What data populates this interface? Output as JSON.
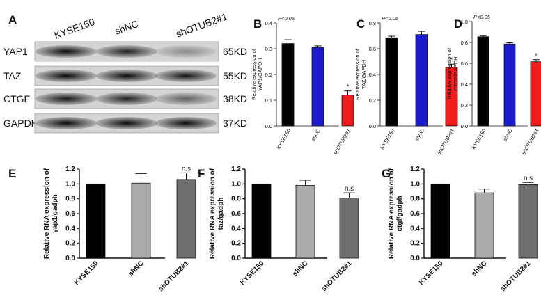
{
  "western_blot": {
    "panel": "A",
    "lanes": [
      "KYSE150",
      "shNC",
      "shOTUB2#1"
    ],
    "proteins": [
      {
        "name": "YAP1",
        "size": "65KD",
        "intensity": [
          0.95,
          0.85,
          0.35
        ]
      },
      {
        "name": "TAZ",
        "size": "55KD",
        "intensity": [
          0.95,
          0.95,
          0.9
        ]
      },
      {
        "name": "CTGF",
        "size": "38KD",
        "intensity": [
          0.9,
          0.85,
          0.55
        ]
      },
      {
        "name": "GAPDH",
        "size": "37KD",
        "intensity": [
          0.95,
          0.95,
          0.95
        ]
      }
    ]
  },
  "chart_data": [
    {
      "panel": "B",
      "type": "bar",
      "categories": [
        "KYSE150",
        "shNC",
        "shOTUB2#1"
      ],
      "values": [
        0.32,
        0.305,
        0.12
      ],
      "errors": [
        0.015,
        0.006,
        0.016
      ],
      "colors": [
        "#000000",
        "#1c1ccc",
        "#ee1c1c"
      ],
      "ylabel": "Relative expression of\nYAP1/GAPDH",
      "ylim": [
        0,
        0.4
      ],
      "yticks": [
        "0.0",
        "0.1",
        "0.2",
        "0.3",
        "0.4"
      ],
      "ytick_values": [
        0,
        0.1,
        0.2,
        0.3,
        0.4
      ],
      "annotation": "P<0.05",
      "marks": [
        "",
        "",
        "*"
      ]
    },
    {
      "panel": "C",
      "type": "bar",
      "categories": [
        "KYSE150",
        "shNC",
        "shOTUB2#1"
      ],
      "values": [
        0.685,
        0.71,
        0.455
      ],
      "errors": [
        0.012,
        0.025,
        0.025
      ],
      "colors": [
        "#000000",
        "#1c1ccc",
        "#ee1c1c"
      ],
      "ylabel": "Relative expression of\nTAZ/GAPDH",
      "ylim": [
        0,
        0.8
      ],
      "yticks": [
        "0.0",
        "0.2",
        "0.4",
        "0.6",
        "0.8"
      ],
      "ytick_values": [
        0,
        0.2,
        0.4,
        0.6,
        0.8
      ],
      "annotation": "P<0.05",
      "marks": [
        "",
        "",
        "*"
      ]
    },
    {
      "panel": "D",
      "type": "bar",
      "categories": [
        "KYSE150",
        "shNC",
        "shOTUB2#1"
      ],
      "values": [
        0.855,
        0.785,
        0.615
      ],
      "errors": [
        0.01,
        0.012,
        0.02
      ],
      "colors": [
        "#000000",
        "#1c1ccc",
        "#ee1c1c"
      ],
      "ylabel": "Relative expression of\nCTGF/GAPDH",
      "ylim": [
        0,
        1.0
      ],
      "yticks": [
        "0.0",
        "0.2",
        "0.4",
        "0.6",
        "0.8",
        "1.0"
      ],
      "ytick_values": [
        0,
        0.2,
        0.4,
        0.6,
        0.8,
        1.0
      ],
      "annotation": "P<0.05",
      "marks": [
        "",
        "",
        "*"
      ]
    },
    {
      "panel": "E",
      "type": "bar",
      "categories": [
        "KYSE150",
        "shNC",
        "shOTUB2#1"
      ],
      "values": [
        1.0,
        1.01,
        1.06
      ],
      "errors": [
        0,
        0.13,
        0.09
      ],
      "colors": [
        "#000000",
        "#aaaaaa",
        "#6e6e6e"
      ],
      "ylabel": "Relative RNA expression of\nyap1/gadph",
      "ylim": [
        0,
        1.2
      ],
      "yticks": [
        "0.0",
        "0.2",
        "0.4",
        "0.6",
        "0.8",
        "1.0",
        "1.2"
      ],
      "ytick_values": [
        0,
        0.2,
        0.4,
        0.6,
        0.8,
        1.0,
        1.2
      ],
      "marks": [
        "",
        "",
        "n.s"
      ]
    },
    {
      "panel": "F",
      "type": "bar",
      "categories": [
        "KYSE150",
        "shNC",
        "shOTUB2#1"
      ],
      "values": [
        1.0,
        0.98,
        0.81
      ],
      "errors": [
        0,
        0.07,
        0.07
      ],
      "colors": [
        "#000000",
        "#aaaaaa",
        "#6e6e6e"
      ],
      "ylabel": "Relative RNA expression of\ntaz/gadph",
      "ylim": [
        0,
        1.2
      ],
      "yticks": [
        "0.0",
        "0.2",
        "0.4",
        "0.6",
        "0.8",
        "1.0",
        "1.2"
      ],
      "ytick_values": [
        0,
        0.2,
        0.4,
        0.6,
        0.8,
        1.0,
        1.2
      ],
      "marks": [
        "",
        "",
        "n.s"
      ]
    },
    {
      "panel": "G",
      "type": "bar",
      "categories": [
        "KYSE150",
        "shNC",
        "shOTUB2#1"
      ],
      "values": [
        1.0,
        0.88,
        0.99
      ],
      "errors": [
        0,
        0.05,
        0.03
      ],
      "colors": [
        "#000000",
        "#aaaaaa",
        "#6e6e6e"
      ],
      "ylabel": "Relative RNA expression of\nctgf/gadph",
      "ylim": [
        0,
        1.2
      ],
      "yticks": [
        "0.0",
        "0.2",
        "0.4",
        "0.6",
        "0.8",
        "1.0",
        "1.2"
      ],
      "ytick_values": [
        0,
        0.2,
        0.4,
        0.6,
        0.8,
        1.0,
        1.2
      ],
      "marks": [
        "",
        "",
        "n.s"
      ]
    }
  ]
}
